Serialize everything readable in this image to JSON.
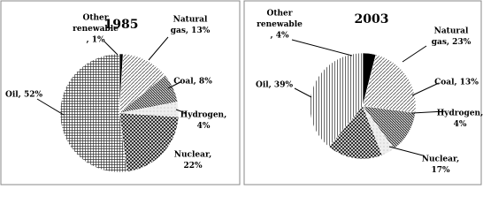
{
  "chart_data": [
    {
      "type": "pie",
      "title": "1985",
      "labels": [
        [
          "Other",
          "renewable",
          ", 1%"
        ],
        [
          "Natural",
          "gas, 13%"
        ],
        [
          "Coal, 8%"
        ],
        [
          "Hydrogen,",
          "4%"
        ],
        [
          "Nuclear,",
          "22%"
        ],
        [
          "Oil, 52%"
        ]
      ],
      "values": [
        1,
        13,
        8,
        4,
        22,
        52
      ]
    },
    {
      "type": "pie",
      "title": "2003",
      "labels": [
        [
          "Other",
          "renewable",
          ", 4%"
        ],
        [
          "Natural",
          "gas, 23%"
        ],
        [
          "Coal, 13%"
        ],
        [
          "Hydrogen,",
          "4%"
        ],
        [
          "Nuclear,",
          "17%"
        ],
        [
          "Oil, 39%"
        ]
      ],
      "values": [
        4,
        23,
        13,
        4,
        17,
        39
      ]
    }
  ]
}
